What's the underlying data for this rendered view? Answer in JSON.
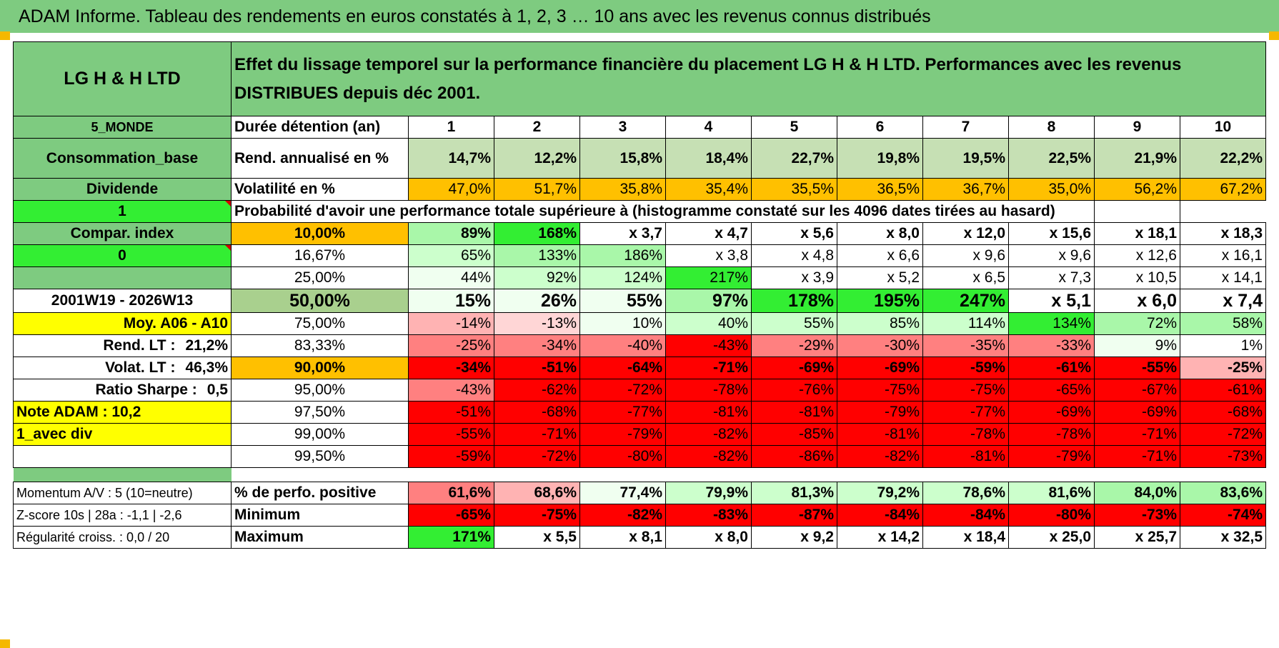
{
  "title": "ADAM Informe. Tableau des rendements en euros constatés à 1, 2, 3 … 10 ans avec les revenus connus distribués",
  "fund_name": "LG H & H LTD",
  "description": "Effet du lissage temporel sur la performance financière du placement LG H & H LTD. Performances avec les revenus DISTRIBUES depuis déc 2001.",
  "left": {
    "region": "5_MONDE",
    "sector": "Consommation_base",
    "type": "Dividende",
    "select_1": "1",
    "compar_index": "Compar. index",
    "select_0": "0",
    "period": "2001W19 - 2026W13",
    "moy": "Moy. A06 - A10",
    "rend_lt_label": "Rend. LT :",
    "rend_lt_value": "21,2%",
    "volat_lt_label": "Volat. LT :",
    "volat_lt_value": "46,3%",
    "sharpe_label": "Ratio Sharpe :",
    "sharpe_value": "0,5",
    "note": "Note ADAM : 10,2",
    "avec_div": "1_avec div",
    "momentum": "Momentum A/V : 5 (10=neutre)",
    "zscore": "Z-score 10s | 28a : -1,1 | -2,6",
    "regularite": "Régularité croiss. : 0,0 / 20"
  },
  "duration_label": "Durée détention (an)",
  "years": [
    "1",
    "2",
    "3",
    "4",
    "5",
    "6",
    "7",
    "8",
    "9",
    "10"
  ],
  "rend_label": "Rend. annualisé en %",
  "rend": [
    "14,7%",
    "12,2%",
    "15,8%",
    "18,4%",
    "22,7%",
    "19,8%",
    "19,5%",
    "22,5%",
    "21,9%",
    "22,2%"
  ],
  "vol_label": "Volatilité en %",
  "vol": [
    "47,0%",
    "51,7%",
    "35,8%",
    "35,4%",
    "35,5%",
    "36,5%",
    "36,7%",
    "35,0%",
    "56,2%",
    "67,2%"
  ],
  "prob_header": "Probabilité d'avoir une performance totale supérieure à (histogramme constaté sur les 4096 dates tirées au hasard)",
  "quantiles": [
    {
      "label": "10,00%",
      "values": [
        "89%",
        "168%",
        "x 3,7",
        "x 4,7",
        "x 5,6",
        "x 8,0",
        "x 12,0",
        "x 15,6",
        "x 18,1",
        "x 18,3"
      ]
    },
    {
      "label": "16,67%",
      "values": [
        "65%",
        "133%",
        "186%",
        "x 3,8",
        "x 4,8",
        "x 6,6",
        "x 9,6",
        "x 9,6",
        "x 12,6",
        "x 16,1"
      ]
    },
    {
      "label": "25,00%",
      "values": [
        "44%",
        "92%",
        "124%",
        "217%",
        "x 3,9",
        "x 5,2",
        "x 6,5",
        "x 7,3",
        "x 10,5",
        "x 14,1"
      ]
    },
    {
      "label": "50,00%",
      "values": [
        "15%",
        "26%",
        "55%",
        "97%",
        "178%",
        "195%",
        "247%",
        "x 5,1",
        "x 6,0",
        "x 7,4"
      ]
    },
    {
      "label": "75,00%",
      "values": [
        "-14%",
        "-13%",
        "10%",
        "40%",
        "55%",
        "85%",
        "114%",
        "134%",
        "72%",
        "58%"
      ]
    },
    {
      "label": "83,33%",
      "values": [
        "-25%",
        "-34%",
        "-40%",
        "-43%",
        "-29%",
        "-30%",
        "-35%",
        "-33%",
        "9%",
        "1%"
      ]
    },
    {
      "label": "90,00%",
      "values": [
        "-34%",
        "-51%",
        "-64%",
        "-71%",
        "-69%",
        "-69%",
        "-59%",
        "-61%",
        "-55%",
        "-25%"
      ]
    },
    {
      "label": "95,00%",
      "values": [
        "-43%",
        "-62%",
        "-72%",
        "-78%",
        "-76%",
        "-75%",
        "-75%",
        "-65%",
        "-67%",
        "-61%"
      ]
    },
    {
      "label": "97,50%",
      "values": [
        "-51%",
        "-68%",
        "-77%",
        "-81%",
        "-81%",
        "-79%",
        "-77%",
        "-69%",
        "-69%",
        "-68%"
      ]
    },
    {
      "label": "99,00%",
      "values": [
        "-55%",
        "-71%",
        "-79%",
        "-82%",
        "-85%",
        "-81%",
        "-78%",
        "-78%",
        "-71%",
        "-72%"
      ]
    },
    {
      "label": "99,50%",
      "values": [
        "-59%",
        "-72%",
        "-80%",
        "-82%",
        "-86%",
        "-82%",
        "-81%",
        "-79%",
        "-71%",
        "-73%"
      ]
    }
  ],
  "pos_label": "% de perfo. positive",
  "pos": [
    "61,6%",
    "68,6%",
    "77,4%",
    "79,9%",
    "81,3%",
    "79,2%",
    "78,6%",
    "81,6%",
    "84,0%",
    "83,6%"
  ],
  "min_label": "Minimum",
  "min": [
    "-65%",
    "-75%",
    "-82%",
    "-83%",
    "-87%",
    "-84%",
    "-84%",
    "-80%",
    "-73%",
    "-74%"
  ],
  "max_label": "Maximum",
  "max": [
    "171%",
    "x 5,5",
    "x 8,1",
    "x 8,0",
    "x 9,2",
    "x 14,2",
    "x 18,4",
    "x 25,0",
    "x 25,7",
    "x 32,5"
  ],
  "colors": {
    "header_green": "#7ecb80",
    "bright_green": "#33ee33",
    "orange": "#ffc000",
    "yellow": "#ffff00",
    "red": "#ff0000"
  }
}
